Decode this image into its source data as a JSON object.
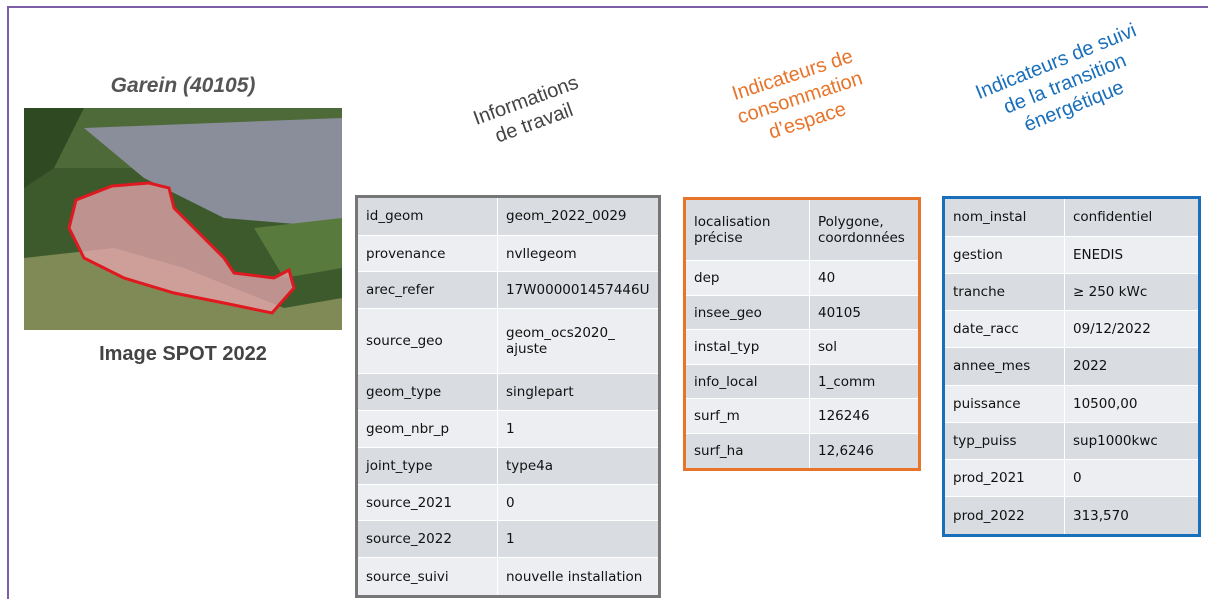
{
  "header": {
    "title": "Garein (40105)",
    "image_caption": "Image SPOT 2022"
  },
  "tables": [
    {
      "heading": [
        "Informations",
        "de travail"
      ],
      "rows": [
        [
          "id_geom",
          "geom_2022_0029"
        ],
        [
          "provenance",
          "nvllegeom"
        ],
        [
          "arec_refer",
          "17W000001457446U"
        ],
        [
          "source_geo",
          "geom_ocs2020_ ajuste"
        ],
        [
          "geom_type",
          "singlepart"
        ],
        [
          "geom_nbr_p",
          "1"
        ],
        [
          "joint_type",
          "type4a"
        ],
        [
          "source_2021",
          "0"
        ],
        [
          "source_2022",
          "1"
        ],
        [
          "source_suivi",
          "nouvelle installation"
        ]
      ]
    },
    {
      "heading": [
        "Indicateurs de",
        "consommation",
        "d’espace"
      ],
      "rows": [
        [
          "localisation précise",
          "Polygone, coordonnées"
        ],
        [
          "dep",
          "40"
        ],
        [
          "insee_geo",
          "40105"
        ],
        [
          "instal_typ",
          "sol"
        ],
        [
          "info_local",
          "1_comm"
        ],
        [
          "surf_m",
          "126246"
        ],
        [
          "surf_ha",
          "12,6246"
        ]
      ]
    },
    {
      "heading": [
        "Indicateurs de suivi",
        "de la transition",
        "énergétique"
      ],
      "rows": [
        [
          "nom_instal",
          "confidentiel"
        ],
        [
          "gestion",
          "ENEDIS"
        ],
        [
          "tranche",
          "≥ 250 kWc"
        ],
        [
          "date_racc",
          "09/12/2022"
        ],
        [
          "annee_mes",
          "2022"
        ],
        [
          "puissance",
          "10500,00"
        ],
        [
          "typ_puiss",
          "sup1000kwc"
        ],
        [
          "prod_2021",
          "0"
        ],
        [
          "prod_2022",
          "313,570"
        ]
      ]
    }
  ]
}
